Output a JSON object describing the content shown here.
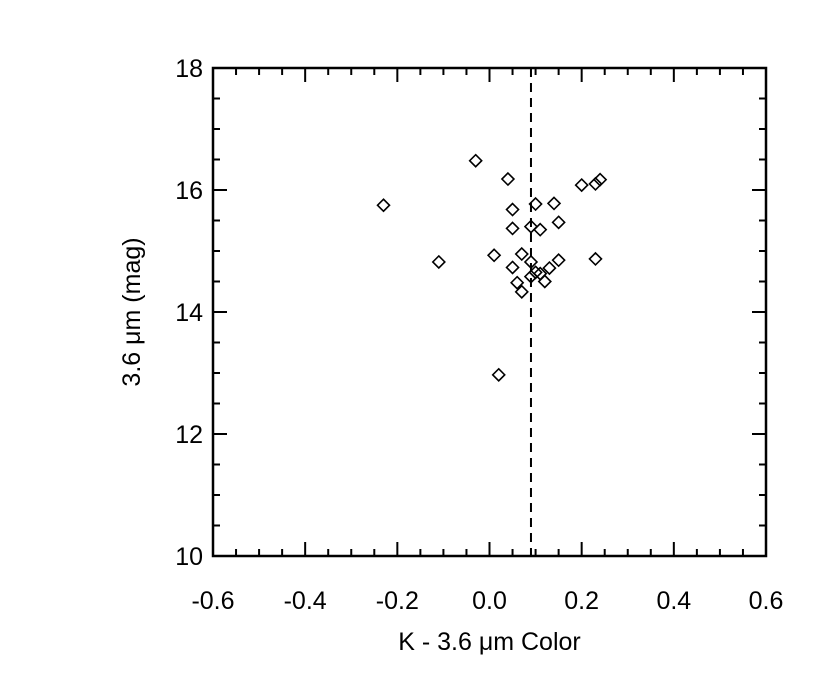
{
  "chart_data": {
    "type": "scatter",
    "title": "",
    "xlabel": "K - 3.6 μm Color",
    "ylabel": "3.6 μm (mag)",
    "xlim": [
      -0.6,
      0.6
    ],
    "ylim": [
      10,
      18
    ],
    "x_ticks": [
      "-0.6",
      "-0.4",
      "-0.2",
      "0.0",
      "0.2",
      "0.4",
      "0.6"
    ],
    "y_ticks": [
      "10",
      "12",
      "14",
      "16",
      "18"
    ],
    "marker": "diamond",
    "grid": false,
    "reference_line": {
      "orientation": "vertical",
      "x": 0.09,
      "style": "dashed"
    },
    "points": [
      {
        "x": -0.23,
        "y": 15.75
      },
      {
        "x": -0.11,
        "y": 14.82
      },
      {
        "x": -0.03,
        "y": 16.48
      },
      {
        "x": 0.01,
        "y": 14.93
      },
      {
        "x": 0.02,
        "y": 12.97
      },
      {
        "x": 0.04,
        "y": 16.18
      },
      {
        "x": 0.05,
        "y": 15.68
      },
      {
        "x": 0.05,
        "y": 15.37
      },
      {
        "x": 0.05,
        "y": 14.73
      },
      {
        "x": 0.06,
        "y": 14.48
      },
      {
        "x": 0.07,
        "y": 14.33
      },
      {
        "x": 0.07,
        "y": 14.95
      },
      {
        "x": 0.09,
        "y": 15.4
      },
      {
        "x": 0.09,
        "y": 14.82
      },
      {
        "x": 0.09,
        "y": 14.58
      },
      {
        "x": 0.1,
        "y": 15.77
      },
      {
        "x": 0.1,
        "y": 14.65
      },
      {
        "x": 0.11,
        "y": 15.35
      },
      {
        "x": 0.11,
        "y": 14.63
      },
      {
        "x": 0.12,
        "y": 14.5
      },
      {
        "x": 0.13,
        "y": 14.72
      },
      {
        "x": 0.14,
        "y": 15.78
      },
      {
        "x": 0.15,
        "y": 15.47
      },
      {
        "x": 0.15,
        "y": 14.85
      },
      {
        "x": 0.2,
        "y": 16.08
      },
      {
        "x": 0.23,
        "y": 16.1
      },
      {
        "x": 0.24,
        "y": 16.17
      },
      {
        "x": 0.23,
        "y": 14.87
      }
    ]
  }
}
